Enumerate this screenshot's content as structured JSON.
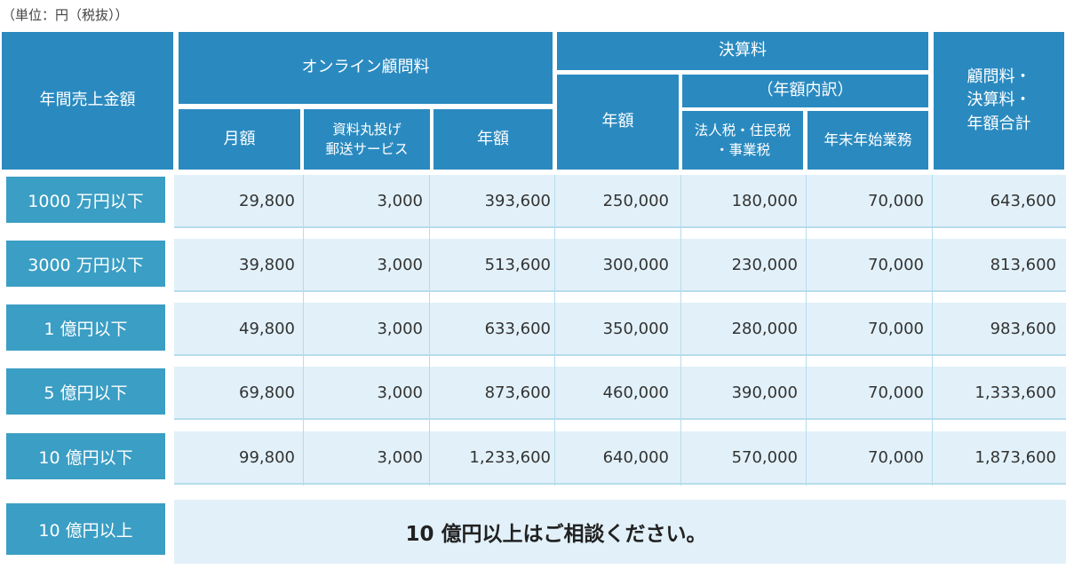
{
  "unit_note": "（単位：円（税抜））",
  "header": {
    "sales": "年間売上金額",
    "online": "オンライン顧問料",
    "online_monthly": "月額",
    "online_doc_1": "資料丸投げ",
    "online_doc_2": "郵送サービス",
    "online_yearly": "年額",
    "settlement": "決算料",
    "settlement_yearly": "年額",
    "breakdown": "（年額内訳）",
    "corp_tax_1": "法人税・住民税",
    "corp_tax_2": "・事業税",
    "year_end": "年末年始業務",
    "total_1": "顧問料・",
    "total_2": "決算料・",
    "total_3": "年額合計"
  },
  "rows": [
    {
      "label": "1000 万円以下",
      "monthly": "29,800",
      "doc": "3,000",
      "online_yearly": "393,600",
      "settle_yearly": "250,000",
      "corp_tax": "180,000",
      "year_end": "70,000",
      "total": "643,600"
    },
    {
      "label": "3000 万円以下",
      "monthly": "39,800",
      "doc": "3,000",
      "online_yearly": "513,600",
      "settle_yearly": "300,000",
      "corp_tax": "230,000",
      "year_end": "70,000",
      "total": "813,600"
    },
    {
      "label": "1 億円以下",
      "monthly": "49,800",
      "doc": "3,000",
      "online_yearly": "633,600",
      "settle_yearly": "350,000",
      "corp_tax": "280,000",
      "year_end": "70,000",
      "total": "983,600"
    },
    {
      "label": "5 億円以下",
      "monthly": "69,800",
      "doc": "3,000",
      "online_yearly": "873,600",
      "settle_yearly": "460,000",
      "corp_tax": "390,000",
      "year_end": "70,000",
      "total": "1,333,600"
    },
    {
      "label": "10 億円以下",
      "monthly": "99,800",
      "doc": "3,000",
      "online_yearly": "1,233,600",
      "settle_yearly": "640,000",
      "corp_tax": "570,000",
      "year_end": "70,000",
      "total": "1,873,600"
    }
  ],
  "last_row": {
    "label": "10 億円以上",
    "message": "10 億円以上はご相談ください。"
  }
}
